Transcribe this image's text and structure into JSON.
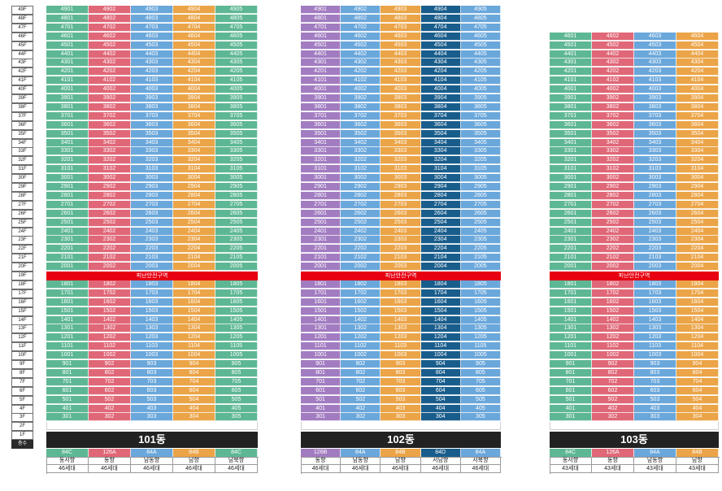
{
  "floor_labels": [
    "49F",
    "48F",
    "47F",
    "46F",
    "45F",
    "44F",
    "43F",
    "42F",
    "41F",
    "40F",
    "39F",
    "38F",
    "37F",
    "36F",
    "35F",
    "34F",
    "33F",
    "32F",
    "31F",
    "30F",
    "29F",
    "28F",
    "27F",
    "26F",
    "25F",
    "24F",
    "23F",
    "22F",
    "21F",
    "20F",
    "19F",
    "18F",
    "17F",
    "16F",
    "15F",
    "14F",
    "13F",
    "12F",
    "11F",
    "10F",
    "9F",
    "8F",
    "7F",
    "6F",
    "5F",
    "4F",
    "3F",
    "2F",
    "1F",
    "층수"
  ],
  "refuge_label": "피난안전구역",
  "colors": {
    "green": "#5eb794",
    "red": "#e06777",
    "blue": "#6aa7db",
    "orange": "#eba447",
    "purple": "#a27cc1",
    "navy": "#195d8c",
    "refuge": "#e60012",
    "namebar": "#222222"
  },
  "buildings": [
    {
      "name": "101동",
      "top_floor": 49,
      "columns": [
        {
          "line": "01",
          "color": "green",
          "type": "84C",
          "direction": "동서향",
          "households": "46세대"
        },
        {
          "line": "02",
          "color": "red",
          "type": "126A",
          "direction": "동향",
          "households": "46세대"
        },
        {
          "line": "03",
          "color": "blue",
          "type": "84A",
          "direction": "남동향",
          "households": "46세대"
        },
        {
          "line": "04",
          "color": "orange",
          "type": "84B",
          "direction": "남향",
          "households": "46세대"
        },
        {
          "line": "05",
          "color": "green",
          "type": "84C",
          "direction": "남북향",
          "households": "46세대"
        }
      ]
    },
    {
      "name": "102동",
      "top_floor": 49,
      "columns": [
        {
          "line": "01",
          "color": "purple",
          "type": "126B",
          "direction": "동향",
          "households": "46세대"
        },
        {
          "line": "02",
          "color": "blue",
          "type": "84A",
          "direction": "남동향",
          "households": "46세대"
        },
        {
          "line": "03",
          "color": "orange",
          "type": "84B",
          "direction": "남향",
          "households": "46세대"
        },
        {
          "line": "04",
          "color": "navy",
          "type": "84D",
          "direction": "서남향",
          "households": "46세대"
        },
        {
          "line": "05",
          "color": "blue",
          "type": "84A",
          "direction": "서북향",
          "households": "46세대"
        }
      ]
    },
    {
      "name": "103동",
      "top_floor": 46,
      "columns": [
        {
          "line": "01",
          "color": "green",
          "type": "84C",
          "direction": "동서향",
          "households": "43세대"
        },
        {
          "line": "02",
          "color": "red",
          "type": "126A",
          "direction": "동향",
          "households": "43세대"
        },
        {
          "line": "03",
          "color": "blue",
          "type": "84A",
          "direction": "남동향",
          "households": "43세대"
        },
        {
          "line": "04",
          "color": "orange",
          "type": "84B",
          "direction": "남향",
          "households": "43세대"
        }
      ]
    }
  ]
}
